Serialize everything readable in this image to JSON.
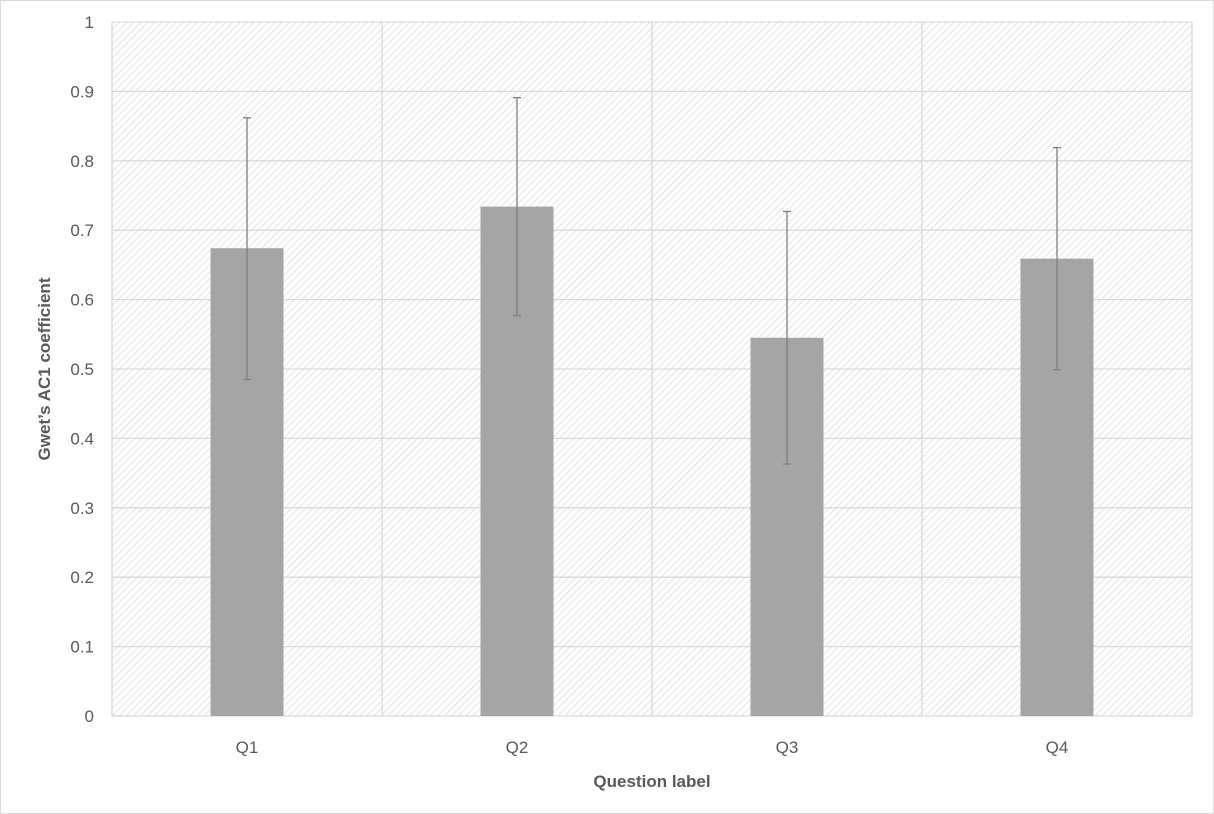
{
  "chart_data": {
    "type": "bar",
    "title": "",
    "xlabel": "Question label",
    "ylabel": "Gwet’s AC1 coefficient",
    "categories": [
      "Q1",
      "Q2",
      "Q3",
      "Q4"
    ],
    "values": [
      0.674,
      0.734,
      0.545,
      0.659
    ],
    "error_low": [
      0.485,
      0.577,
      0.363,
      0.499
    ],
    "error_high": [
      0.862,
      0.891,
      0.727,
      0.819
    ],
    "ylim": [
      0,
      1
    ],
    "yticks": [
      "0",
      "0.1",
      "0.2",
      "0.3",
      "0.4",
      "0.5",
      "0.6",
      "0.7",
      "0.8",
      "0.9",
      "1"
    ],
    "grid": true,
    "plot_background": "hatched",
    "bar_color": "#a5a5a5",
    "error_bar_color": "#7f7f7f",
    "grid_color": "#d9d9d9"
  }
}
